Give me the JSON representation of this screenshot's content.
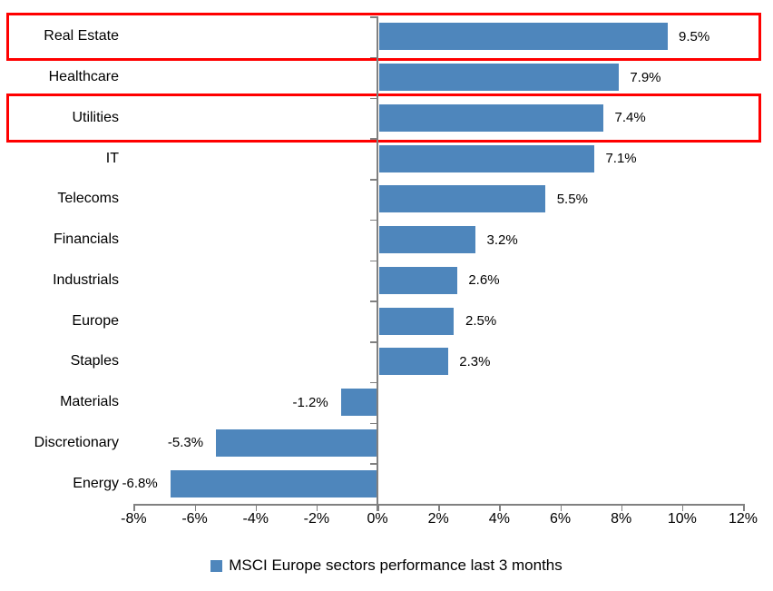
{
  "chart_data": {
    "type": "bar",
    "orientation": "horizontal",
    "title": "",
    "categories": [
      "Real Estate",
      "Healthcare",
      "Utilities",
      "IT",
      "Telecoms",
      "Financials",
      "Industrials",
      "Europe",
      "Staples",
      "Materials",
      "Discretionary",
      "Energy"
    ],
    "values": [
      9.5,
      7.9,
      7.4,
      7.1,
      5.5,
      3.2,
      2.6,
      2.5,
      2.3,
      -1.2,
      -5.3,
      -6.8
    ],
    "value_labels": [
      "9.5%",
      "7.9%",
      "7.4%",
      "7.1%",
      "5.5%",
      "3.2%",
      "2.6%",
      "2.5%",
      "2.3%",
      "-1.2%",
      "-5.3%",
      "-6.8%"
    ],
    "highlighted_categories": [
      "Real Estate",
      "Utilities"
    ],
    "x_axis": {
      "min": -8,
      "max": 12,
      "step": 2,
      "tick_labels": [
        "-8%",
        "-6%",
        "-4%",
        "-2%",
        "0%",
        "2%",
        "4%",
        "6%",
        "8%",
        "10%",
        "12%"
      ]
    },
    "grid": false,
    "legend": {
      "position": "bottom",
      "label": "MSCI Europe sectors performance last 3 months"
    },
    "colors": {
      "bar": "#4E86BC",
      "highlight_box": "#FF0000",
      "axis": "#808080",
      "text": "#000000",
      "background": "#FFFFFF"
    }
  }
}
